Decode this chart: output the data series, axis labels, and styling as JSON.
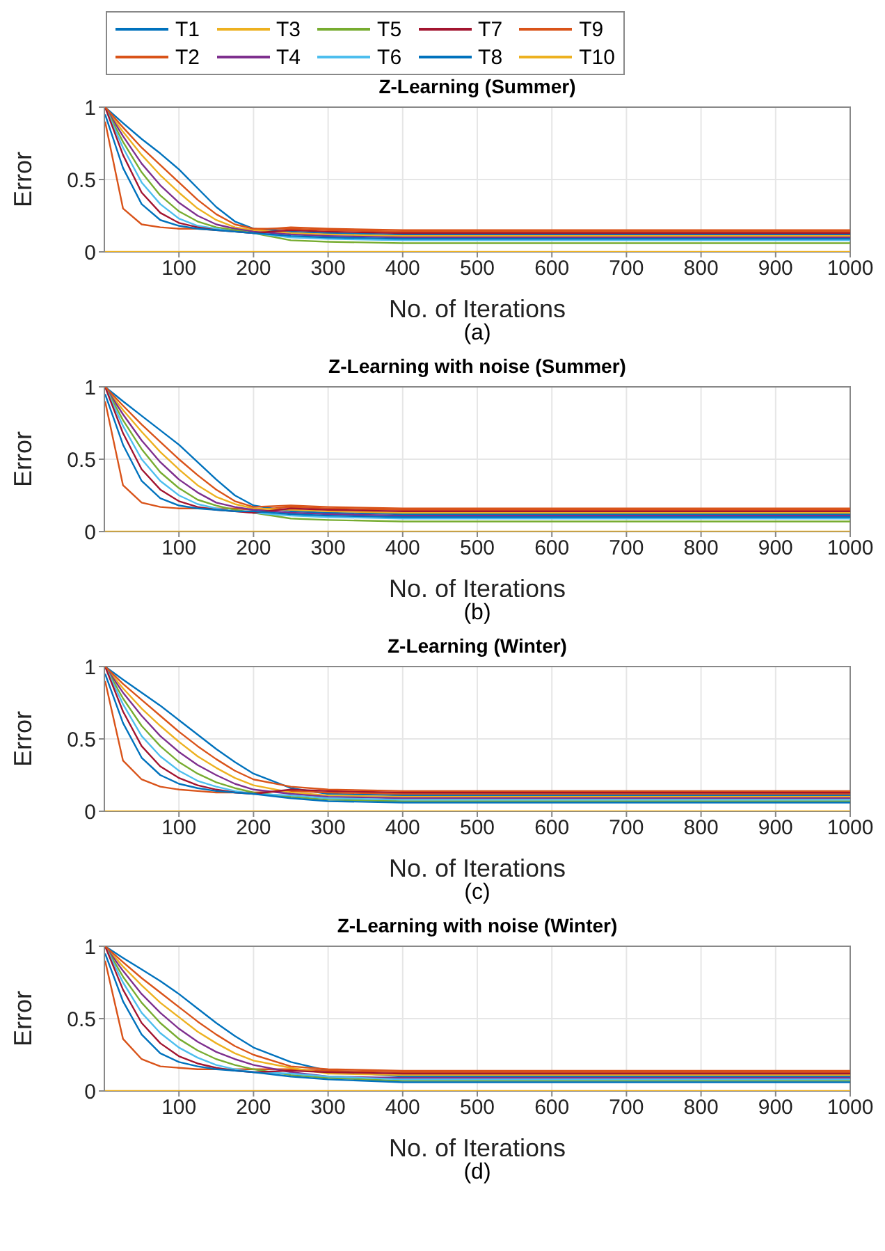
{
  "chart_data": [
    {
      "type": "line",
      "title": "Z-Learning (Summer)",
      "xlabel": "No. of Iterations",
      "ylabel": "Error",
      "annotations": [
        "(a)"
      ],
      "xlim": [
        0,
        1000
      ],
      "xticks": [
        100,
        200,
        300,
        400,
        500,
        600,
        700,
        800,
        900,
        1000
      ],
      "ylim": [
        0,
        1
      ],
      "yticks": [
        0,
        0.5,
        1
      ],
      "grid": true,
      "legend": "top",
      "line_style": "solid",
      "marker": "none",
      "x": [
        1,
        25,
        50,
        75,
        100,
        125,
        150,
        175,
        200,
        250,
        300,
        400,
        500,
        600,
        700,
        800,
        900,
        1000
      ],
      "series": [
        {
          "name": "T1",
          "color": "#0072bd",
          "values": [
            1,
            0.89,
            0.78,
            0.68,
            0.57,
            0.44,
            0.31,
            0.21,
            0.16,
            0.14,
            0.13,
            0.12,
            0.12,
            0.12,
            0.12,
            0.12,
            0.12,
            0.12
          ]
        },
        {
          "name": "T2",
          "color": "#d95319",
          "values": [
            0.9,
            0.3,
            0.19,
            0.17,
            0.16,
            0.16,
            0.15,
            0.15,
            0.15,
            0.17,
            0.16,
            0.15,
            0.15,
            0.15,
            0.15,
            0.15,
            0.15,
            0.15
          ]
        },
        {
          "name": "T3",
          "color": "#edb120",
          "values": [
            1,
            0.83,
            0.67,
            0.53,
            0.41,
            0.3,
            0.22,
            0.17,
            0.15,
            0.13,
            0.12,
            0.11,
            0.11,
            0.11,
            0.11,
            0.11,
            0.11,
            0.11
          ]
        },
        {
          "name": "T4",
          "color": "#7e2f8e",
          "values": [
            1,
            0.8,
            0.61,
            0.46,
            0.34,
            0.25,
            0.19,
            0.16,
            0.14,
            0.12,
            0.11,
            0.1,
            0.1,
            0.1,
            0.1,
            0.1,
            0.1,
            0.1
          ]
        },
        {
          "name": "T5",
          "color": "#77ac30",
          "values": [
            1,
            0.76,
            0.55,
            0.39,
            0.28,
            0.21,
            0.17,
            0.15,
            0.13,
            0.08,
            0.07,
            0.06,
            0.06,
            0.06,
            0.06,
            0.06,
            0.06,
            0.06
          ]
        },
        {
          "name": "T6",
          "color": "#4dbeee",
          "values": [
            1,
            0.72,
            0.48,
            0.33,
            0.23,
            0.18,
            0.16,
            0.14,
            0.13,
            0.1,
            0.09,
            0.08,
            0.08,
            0.08,
            0.08,
            0.08,
            0.08,
            0.08
          ]
        },
        {
          "name": "T7",
          "color": "#a2142f",
          "values": [
            1,
            0.67,
            0.41,
            0.27,
            0.2,
            0.17,
            0.15,
            0.14,
            0.13,
            0.15,
            0.14,
            0.13,
            0.13,
            0.13,
            0.13,
            0.13,
            0.13,
            0.13
          ]
        },
        {
          "name": "T8",
          "color": "#0072bd",
          "values": [
            0.95,
            0.58,
            0.33,
            0.22,
            0.18,
            0.16,
            0.15,
            0.14,
            0.13,
            0.11,
            0.1,
            0.09,
            0.09,
            0.09,
            0.09,
            0.09,
            0.09,
            0.09
          ]
        },
        {
          "name": "T9",
          "color": "#d95319",
          "values": [
            1,
            0.86,
            0.72,
            0.6,
            0.48,
            0.36,
            0.26,
            0.19,
            0.16,
            0.16,
            0.15,
            0.14,
            0.14,
            0.14,
            0.14,
            0.14,
            0.14,
            0.14
          ]
        },
        {
          "name": "T10",
          "color": "#edb120",
          "values": [
            0,
            0,
            0,
            0,
            0,
            0,
            0,
            0,
            0,
            0,
            0,
            0,
            0,
            0,
            0,
            0,
            0,
            0
          ]
        }
      ]
    },
    {
      "type": "line",
      "title": "Z-Learning with noise (Summer)",
      "xlabel": "No. of Iterations",
      "ylabel": "Error",
      "annotations": [
        "(b)"
      ],
      "xlim": [
        0,
        1000
      ],
      "xticks": [
        100,
        200,
        300,
        400,
        500,
        600,
        700,
        800,
        900,
        1000
      ],
      "ylim": [
        0,
        1
      ],
      "yticks": [
        0,
        0.5,
        1
      ],
      "grid": true,
      "line_style": "solid",
      "marker": "none",
      "x": [
        1,
        25,
        50,
        75,
        100,
        125,
        150,
        175,
        200,
        250,
        300,
        400,
        500,
        600,
        700,
        800,
        900,
        1000
      ],
      "series": [
        {
          "color": "#0072bd",
          "values": [
            1,
            0.9,
            0.8,
            0.7,
            0.6,
            0.48,
            0.36,
            0.25,
            0.18,
            0.14,
            0.13,
            0.12,
            0.12,
            0.12,
            0.12,
            0.12,
            0.12,
            0.12
          ]
        },
        {
          "color": "#d95319",
          "values": [
            0.9,
            0.32,
            0.2,
            0.17,
            0.16,
            0.16,
            0.16,
            0.16,
            0.15,
            0.17,
            0.16,
            0.15,
            0.15,
            0.15,
            0.15,
            0.15,
            0.15,
            0.15
          ]
        },
        {
          "color": "#edb120",
          "values": [
            1,
            0.84,
            0.69,
            0.55,
            0.43,
            0.32,
            0.24,
            0.19,
            0.16,
            0.15,
            0.14,
            0.13,
            0.13,
            0.13,
            0.13,
            0.13,
            0.13,
            0.13
          ]
        },
        {
          "color": "#7e2f8e",
          "values": [
            1,
            0.81,
            0.63,
            0.48,
            0.36,
            0.27,
            0.2,
            0.17,
            0.15,
            0.13,
            0.12,
            0.11,
            0.11,
            0.11,
            0.11,
            0.11,
            0.11,
            0.11
          ]
        },
        {
          "color": "#77ac30",
          "values": [
            1,
            0.77,
            0.57,
            0.41,
            0.3,
            0.22,
            0.18,
            0.15,
            0.13,
            0.09,
            0.08,
            0.07,
            0.07,
            0.07,
            0.07,
            0.07,
            0.07,
            0.07
          ]
        },
        {
          "color": "#4dbeee",
          "values": [
            1,
            0.73,
            0.5,
            0.35,
            0.25,
            0.19,
            0.16,
            0.14,
            0.13,
            0.11,
            0.1,
            0.09,
            0.09,
            0.09,
            0.09,
            0.09,
            0.09,
            0.09
          ]
        },
        {
          "color": "#a2142f",
          "values": [
            1,
            0.68,
            0.43,
            0.29,
            0.21,
            0.17,
            0.15,
            0.14,
            0.13,
            0.16,
            0.15,
            0.14,
            0.14,
            0.14,
            0.14,
            0.14,
            0.14,
            0.14
          ]
        },
        {
          "color": "#0072bd",
          "values": [
            0.95,
            0.6,
            0.35,
            0.23,
            0.18,
            0.16,
            0.15,
            0.14,
            0.14,
            0.12,
            0.11,
            0.1,
            0.1,
            0.1,
            0.1,
            0.1,
            0.1,
            0.1
          ]
        },
        {
          "color": "#d95319",
          "values": [
            1,
            0.87,
            0.74,
            0.62,
            0.5,
            0.39,
            0.29,
            0.21,
            0.17,
            0.18,
            0.17,
            0.16,
            0.16,
            0.16,
            0.16,
            0.16,
            0.16,
            0.16
          ]
        },
        {
          "color": "#edb120",
          "values": [
            0,
            0,
            0,
            0,
            0,
            0,
            0,
            0,
            0,
            0,
            0,
            0,
            0,
            0,
            0,
            0,
            0,
            0
          ]
        }
      ]
    },
    {
      "type": "line",
      "title": "Z-Learning (Winter)",
      "xlabel": "No. of Iterations",
      "ylabel": "Error",
      "annotations": [
        "(c)"
      ],
      "xlim": [
        0,
        1000
      ],
      "xticks": [
        100,
        200,
        300,
        400,
        500,
        600,
        700,
        800,
        900,
        1000
      ],
      "ylim": [
        0,
        1
      ],
      "yticks": [
        0,
        0.5,
        1
      ],
      "grid": true,
      "line_style": "solid",
      "marker": "none",
      "x": [
        1,
        25,
        50,
        75,
        100,
        125,
        150,
        175,
        200,
        250,
        300,
        400,
        500,
        600,
        700,
        800,
        900,
        1000
      ],
      "series": [
        {
          "color": "#0072bd",
          "values": [
            1,
            0.91,
            0.82,
            0.73,
            0.63,
            0.53,
            0.43,
            0.34,
            0.26,
            0.16,
            0.12,
            0.11,
            0.11,
            0.11,
            0.11,
            0.11,
            0.11,
            0.11
          ]
        },
        {
          "color": "#d95319",
          "values": [
            0.9,
            0.35,
            0.22,
            0.17,
            0.15,
            0.14,
            0.13,
            0.13,
            0.13,
            0.14,
            0.13,
            0.12,
            0.12,
            0.12,
            0.12,
            0.12,
            0.12,
            0.12
          ]
        },
        {
          "color": "#edb120",
          "values": [
            1,
            0.85,
            0.71,
            0.59,
            0.48,
            0.38,
            0.3,
            0.23,
            0.18,
            0.13,
            0.11,
            0.1,
            0.1,
            0.1,
            0.1,
            0.1,
            0.1,
            0.1
          ]
        },
        {
          "color": "#7e2f8e",
          "values": [
            1,
            0.82,
            0.66,
            0.52,
            0.41,
            0.32,
            0.25,
            0.19,
            0.15,
            0.12,
            0.1,
            0.09,
            0.09,
            0.09,
            0.09,
            0.09,
            0.09,
            0.09
          ]
        },
        {
          "color": "#77ac30",
          "values": [
            1,
            0.78,
            0.59,
            0.45,
            0.34,
            0.26,
            0.2,
            0.16,
            0.13,
            0.1,
            0.08,
            0.07,
            0.07,
            0.07,
            0.07,
            0.07,
            0.07,
            0.07
          ]
        },
        {
          "color": "#4dbeee",
          "values": [
            1,
            0.74,
            0.52,
            0.38,
            0.28,
            0.21,
            0.17,
            0.14,
            0.12,
            0.11,
            0.09,
            0.08,
            0.08,
            0.08,
            0.08,
            0.08,
            0.08,
            0.08
          ]
        },
        {
          "color": "#a2142f",
          "values": [
            1,
            0.69,
            0.45,
            0.31,
            0.23,
            0.18,
            0.15,
            0.13,
            0.12,
            0.15,
            0.14,
            0.13,
            0.13,
            0.13,
            0.13,
            0.13,
            0.13,
            0.13
          ]
        },
        {
          "color": "#0072bd",
          "values": [
            0.95,
            0.61,
            0.37,
            0.25,
            0.19,
            0.16,
            0.14,
            0.13,
            0.12,
            0.09,
            0.07,
            0.06,
            0.06,
            0.06,
            0.06,
            0.06,
            0.06,
            0.06
          ]
        },
        {
          "color": "#d95319",
          "values": [
            1,
            0.88,
            0.77,
            0.66,
            0.55,
            0.45,
            0.36,
            0.28,
            0.22,
            0.17,
            0.15,
            0.14,
            0.14,
            0.14,
            0.14,
            0.14,
            0.14,
            0.14
          ]
        },
        {
          "color": "#edb120",
          "values": [
            0,
            0,
            0,
            0,
            0,
            0,
            0,
            0,
            0,
            0,
            0,
            0,
            0,
            0,
            0,
            0,
            0,
            0
          ]
        }
      ]
    },
    {
      "type": "line",
      "title": "Z-Learning with noise (Winter)",
      "xlabel": "No. of Iterations",
      "ylabel": "Error",
      "annotations": [
        "(d)"
      ],
      "xlim": [
        0,
        1000
      ],
      "xticks": [
        100,
        200,
        300,
        400,
        500,
        600,
        700,
        800,
        900,
        1000
      ],
      "ylim": [
        0,
        1
      ],
      "yticks": [
        0,
        0.5,
        1
      ],
      "grid": true,
      "line_style": "solid",
      "marker": "none",
      "x": [
        1,
        25,
        50,
        75,
        100,
        125,
        150,
        175,
        200,
        250,
        300,
        400,
        500,
        600,
        700,
        800,
        900,
        1000
      ],
      "series": [
        {
          "color": "#0072bd",
          "values": [
            1,
            0.92,
            0.84,
            0.76,
            0.67,
            0.57,
            0.47,
            0.38,
            0.3,
            0.2,
            0.14,
            0.1,
            0.1,
            0.1,
            0.1,
            0.1,
            0.1,
            0.1
          ]
        },
        {
          "color": "#d95319",
          "values": [
            0.9,
            0.36,
            0.22,
            0.17,
            0.16,
            0.15,
            0.15,
            0.15,
            0.15,
            0.15,
            0.14,
            0.13,
            0.13,
            0.13,
            0.13,
            0.13,
            0.13,
            0.13
          ]
        },
        {
          "color": "#edb120",
          "values": [
            1,
            0.86,
            0.73,
            0.61,
            0.51,
            0.41,
            0.33,
            0.26,
            0.21,
            0.16,
            0.12,
            0.11,
            0.11,
            0.11,
            0.11,
            0.11,
            0.11,
            0.11
          ]
        },
        {
          "color": "#7e2f8e",
          "values": [
            1,
            0.83,
            0.67,
            0.54,
            0.43,
            0.34,
            0.27,
            0.22,
            0.18,
            0.13,
            0.1,
            0.09,
            0.09,
            0.09,
            0.09,
            0.09,
            0.09,
            0.09
          ]
        },
        {
          "color": "#77ac30",
          "values": [
            1,
            0.79,
            0.61,
            0.47,
            0.36,
            0.28,
            0.22,
            0.18,
            0.15,
            0.11,
            0.09,
            0.07,
            0.07,
            0.07,
            0.07,
            0.07,
            0.07,
            0.07
          ]
        },
        {
          "color": "#4dbeee",
          "values": [
            1,
            0.75,
            0.54,
            0.4,
            0.3,
            0.23,
            0.18,
            0.15,
            0.13,
            0.12,
            0.1,
            0.08,
            0.08,
            0.08,
            0.08,
            0.08,
            0.08,
            0.08
          ]
        },
        {
          "color": "#a2142f",
          "values": [
            1,
            0.7,
            0.47,
            0.33,
            0.24,
            0.19,
            0.16,
            0.14,
            0.13,
            0.14,
            0.13,
            0.12,
            0.12,
            0.12,
            0.12,
            0.12,
            0.12,
            0.12
          ]
        },
        {
          "color": "#0072bd",
          "values": [
            0.95,
            0.62,
            0.39,
            0.26,
            0.2,
            0.17,
            0.15,
            0.14,
            0.13,
            0.1,
            0.08,
            0.06,
            0.06,
            0.06,
            0.06,
            0.06,
            0.06,
            0.06
          ]
        },
        {
          "color": "#d95319",
          "values": [
            1,
            0.89,
            0.78,
            0.68,
            0.58,
            0.48,
            0.39,
            0.31,
            0.25,
            0.17,
            0.15,
            0.14,
            0.14,
            0.14,
            0.14,
            0.14,
            0.14,
            0.14
          ]
        },
        {
          "color": "#edb120",
          "values": [
            0,
            0,
            0,
            0,
            0,
            0,
            0,
            0,
            0,
            0,
            0,
            0,
            0,
            0,
            0,
            0,
            0,
            0
          ]
        }
      ]
    }
  ]
}
